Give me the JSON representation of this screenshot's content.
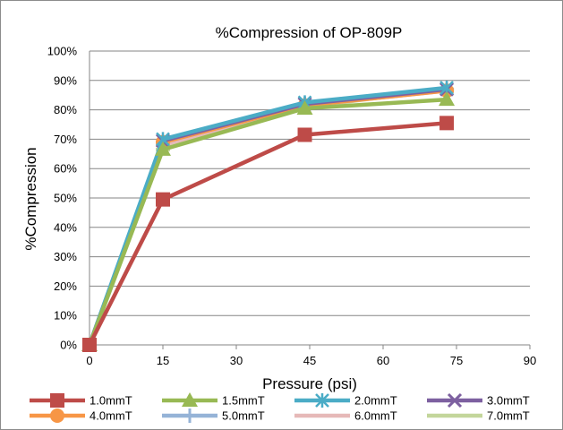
{
  "chart_data": {
    "type": "line",
    "title": "%Compression of OP-809P",
    "xlabel": "Pressure (psi)",
    "ylabel": "%Compression",
    "xlim": [
      0,
      90
    ],
    "ylim": [
      0,
      100
    ],
    "x_ticks": [
      "0",
      "15",
      "30",
      "45",
      "60",
      "75",
      "90"
    ],
    "y_ticks": [
      "0%",
      "10%",
      "20%",
      "30%",
      "40%",
      "50%",
      "60%",
      "70%",
      "80%",
      "90%",
      "100%"
    ],
    "grid": "horizontal",
    "legend_position": "bottom",
    "x": [
      0,
      15,
      44,
      73
    ],
    "series": [
      {
        "name": "1.0mmT",
        "color": "#be4b48",
        "marker": "square",
        "values": [
          0,
          49.5,
          71.5,
          75.5
        ]
      },
      {
        "name": "1.5mmT",
        "color": "#98b954",
        "marker": "triangle",
        "values": [
          0,
          66.5,
          80.5,
          83.5
        ]
      },
      {
        "name": "2.0mmT",
        "color": "#4bacc6",
        "marker": "star",
        "values": [
          0,
          70,
          82.5,
          87.5
        ]
      },
      {
        "name": "3.0mmT",
        "color": "#7d60a0",
        "marker": "x",
        "values": [
          0,
          69.5,
          82,
          87
        ]
      },
      {
        "name": "4.0mmT",
        "color": "#f79646",
        "marker": "circle",
        "values": [
          0,
          69,
          81.5,
          86.5
        ]
      },
      {
        "name": "5.0mmT",
        "color": "#95b3d7",
        "marker": "plus",
        "values": [
          0,
          69,
          82,
          87
        ]
      },
      {
        "name": "6.0mmT",
        "color": "#e6b9b8",
        "marker": "dash",
        "values": [
          0,
          68,
          81.5,
          86.5
        ]
      },
      {
        "name": "7.0mmT",
        "color": "#c3d69b",
        "marker": "dash",
        "values": [
          0,
          66.5,
          81,
          87
        ]
      }
    ]
  }
}
